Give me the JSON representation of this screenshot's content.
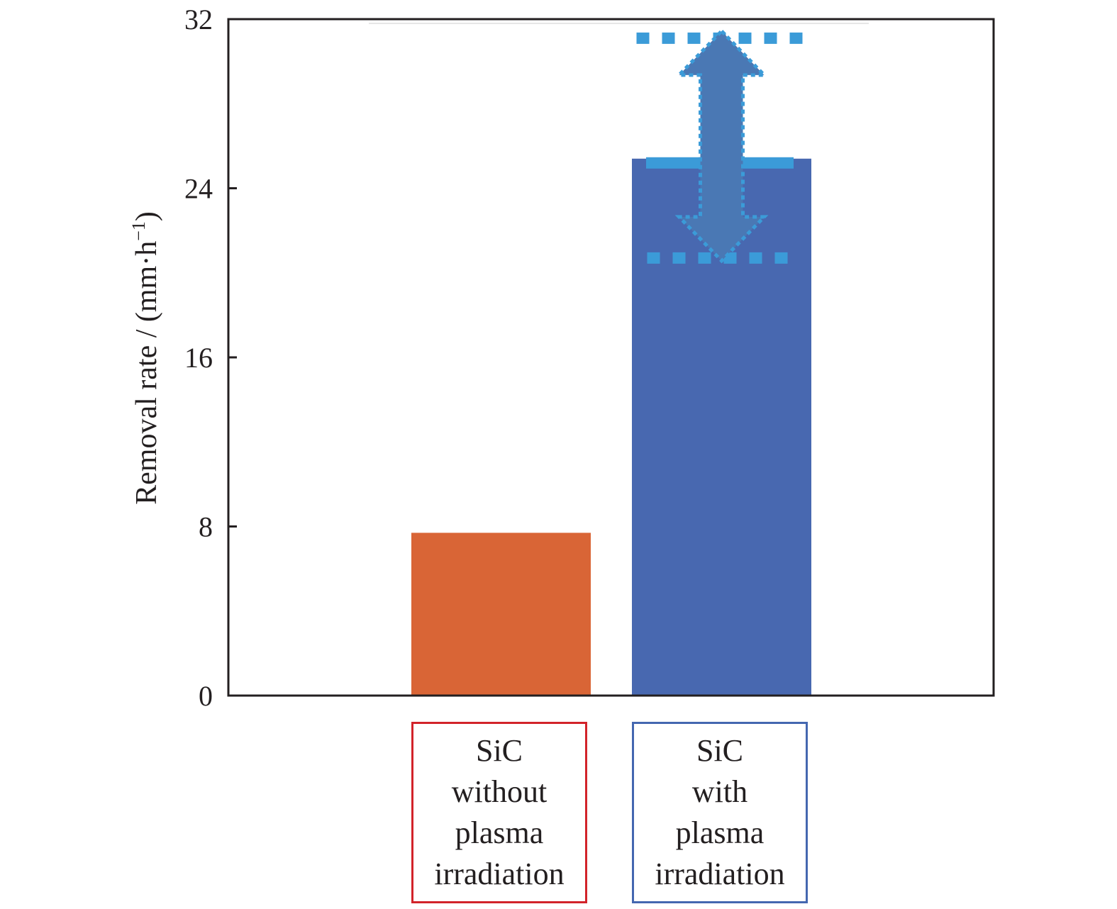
{
  "chart_data": {
    "type": "bar",
    "title": "",
    "xlabel": "",
    "ylabel": "Removal rate / (mm·h",
    "ylabel_superscript": "−1",
    "ylabel_close": ")",
    "ylim": [
      0,
      32
    ],
    "yticks": [
      "0",
      "8",
      "16",
      "24",
      "32"
    ],
    "grid": false,
    "categories": [
      {
        "lines": [
          "SiC",
          "without",
          "plasma",
          "irradiation"
        ],
        "box_color": "#d2232a"
      },
      {
        "lines": [
          "SiC",
          "with",
          "plasma",
          "irradiation"
        ],
        "box_color": "#4467b0"
      }
    ],
    "values": [
      7.7,
      25.4
    ],
    "bar_colors": [
      "#d96536",
      "#4868b0"
    ],
    "annotation": {
      "type": "double-arrow-range",
      "upper": 31.1,
      "lower": 20.7,
      "bar_index": 1,
      "color": "#3b9bd8",
      "arrow_color": "#4a78b4"
    }
  }
}
